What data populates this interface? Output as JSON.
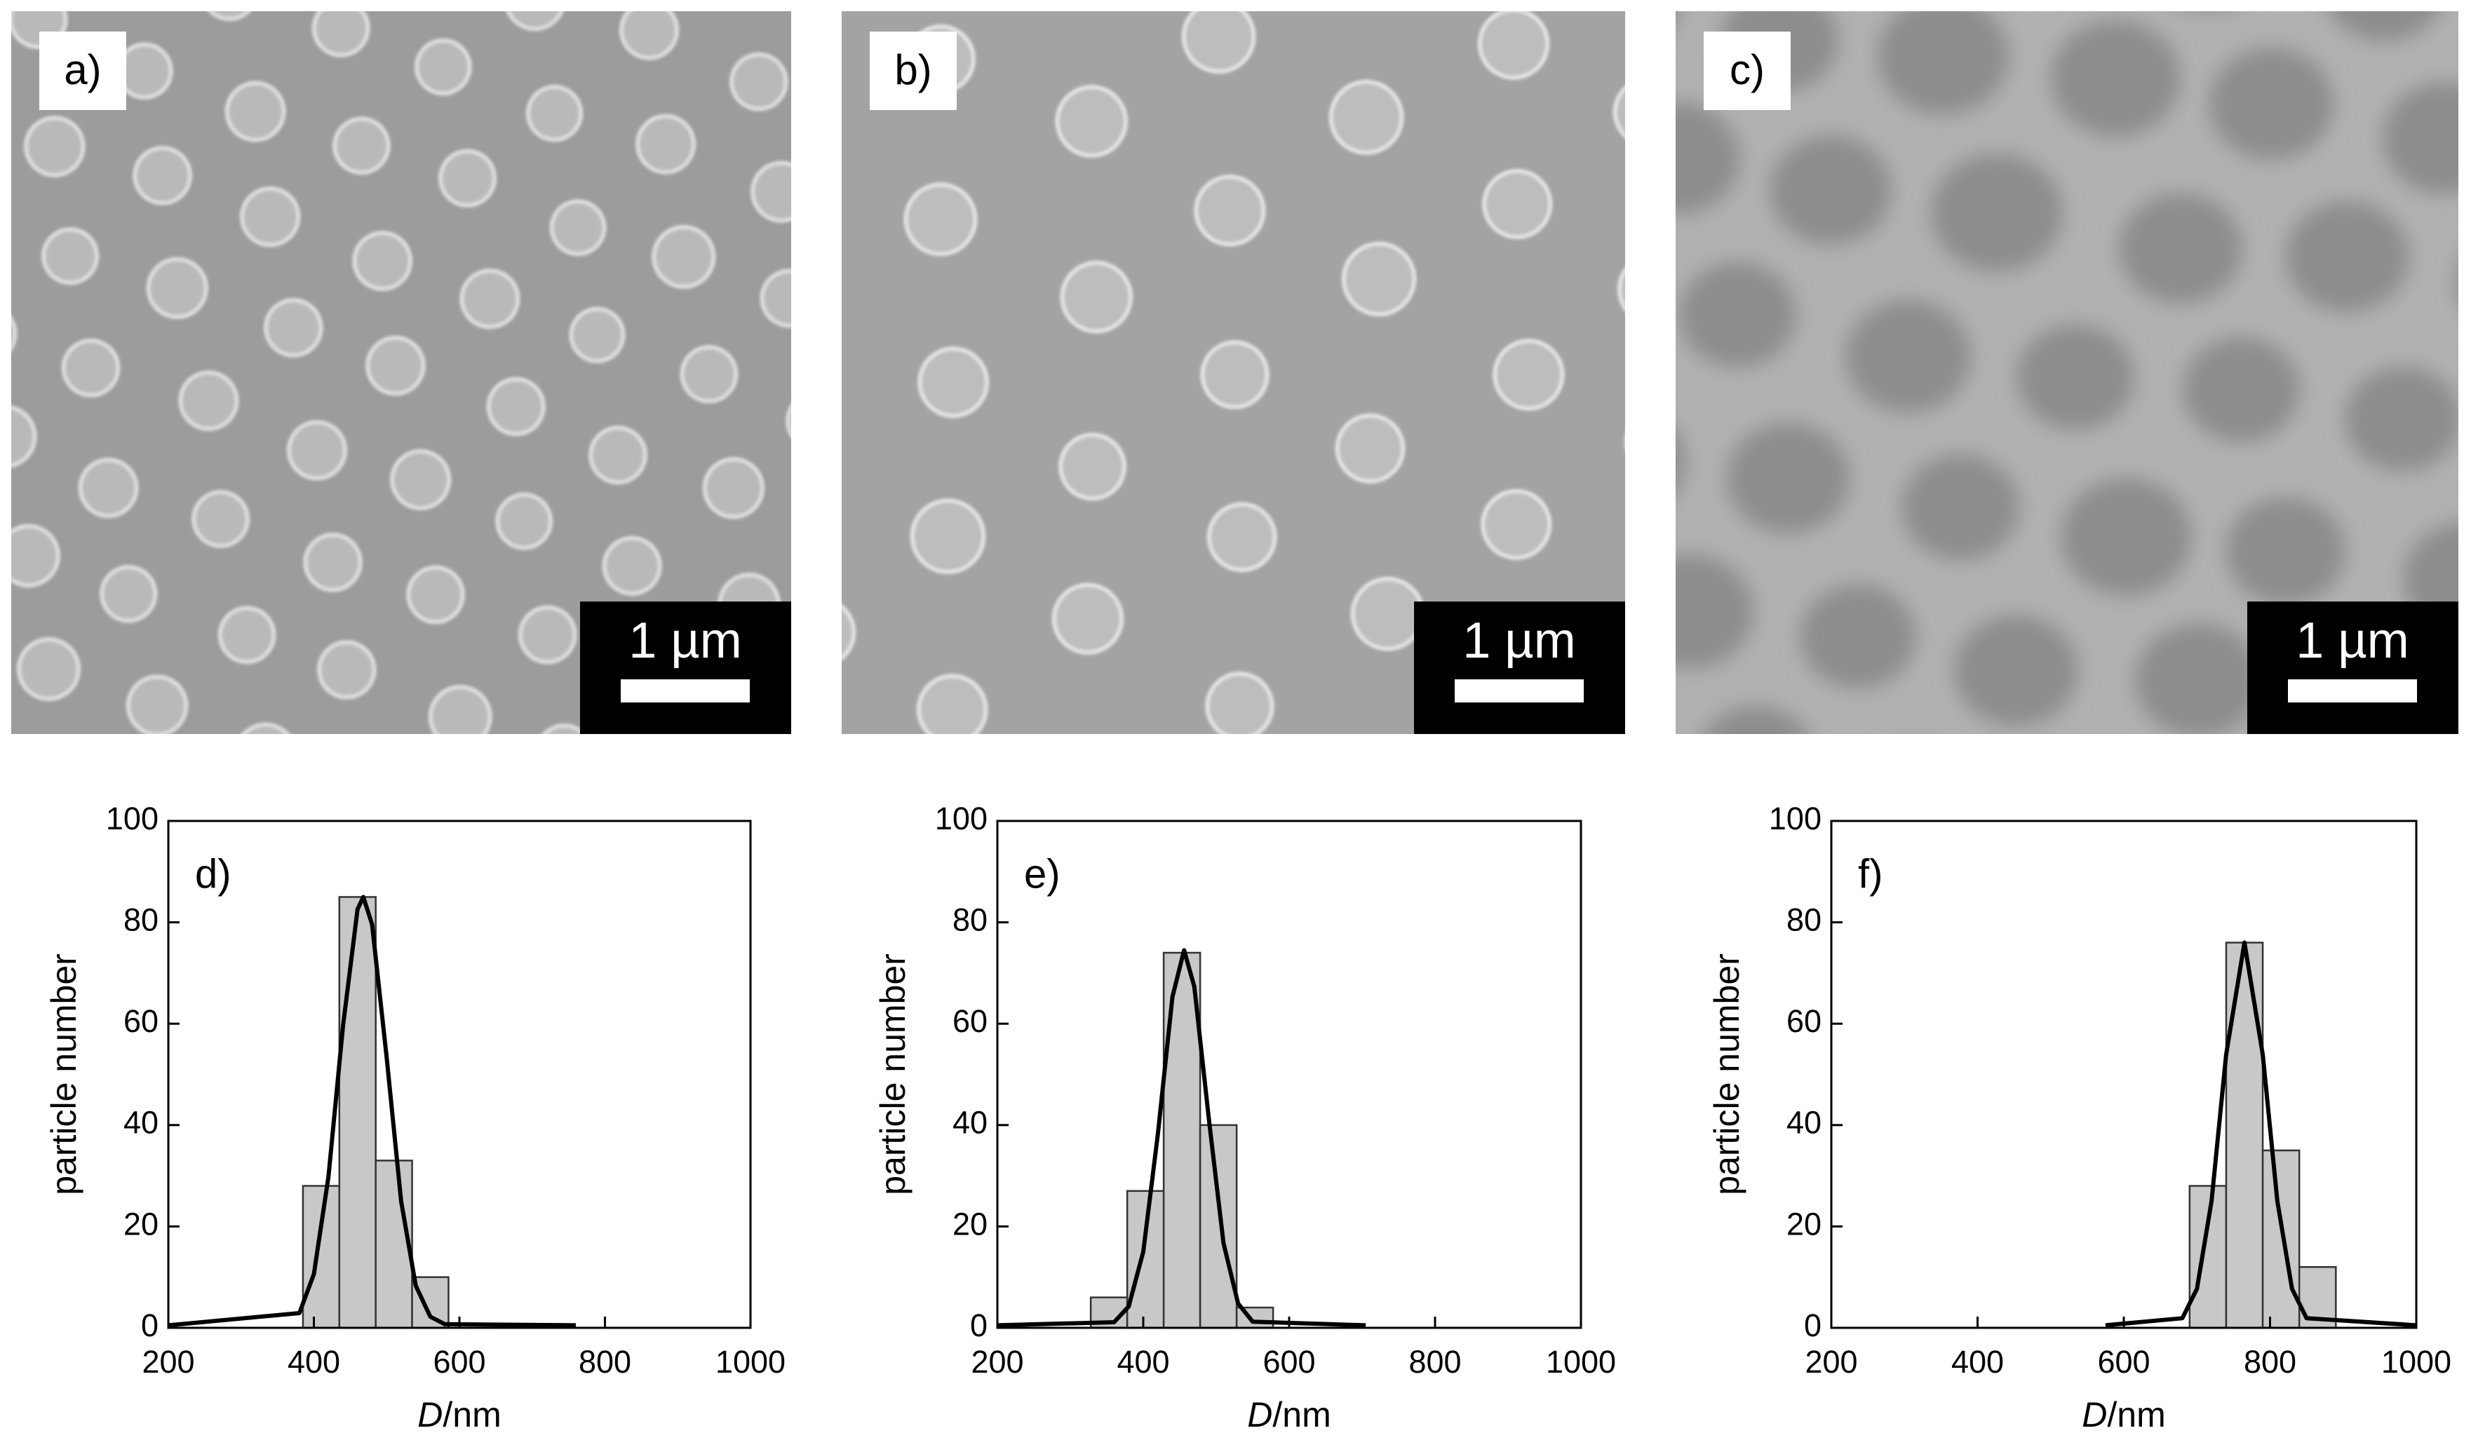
{
  "images": [
    {
      "label": "a)",
      "scale_bar": "1 µm"
    },
    {
      "label": "b)",
      "scale_bar": "1 µm"
    },
    {
      "label": "c)",
      "scale_bar": "1 µm"
    }
  ],
  "chart_data": [
    {
      "type": "histogram",
      "panel_label": "d)",
      "ylabel": "particle number",
      "xlabel_symbol": "D",
      "xlabel_unit": "/nm",
      "bins": [
        385,
        435,
        485,
        535,
        585
      ],
      "values": [
        28,
        85,
        33,
        10
      ],
      "color": "#c8c8c8",
      "fit": {
        "x": [
          200,
          380,
          400,
          420,
          440,
          460,
          468,
          480,
          500,
          520,
          540,
          560,
          580,
          760
        ],
        "values": [
          0.5,
          2.9,
          10.6,
          29.8,
          59.5,
          82.6,
          85,
          79.6,
          53.3,
          24.9,
          8.3,
          2.2,
          0.7,
          0.5
        ]
      },
      "xlim": [
        200,
        1000
      ],
      "xticks": [
        200,
        400,
        600,
        800,
        1000
      ],
      "ylim": [
        0,
        100
      ],
      "yticks": [
        0,
        20,
        40,
        60,
        80,
        100
      ]
    },
    {
      "type": "histogram",
      "panel_label": "e)",
      "ylabel": "particle number",
      "xlabel_symbol": "D",
      "xlabel_unit": "/nm",
      "bins": [
        328,
        378,
        428,
        478,
        528,
        578
      ],
      "values": [
        6,
        27,
        74,
        40,
        4
      ],
      "color": "#c8c8c8",
      "fit": {
        "x": [
          200,
          360,
          380,
          400,
          420,
          440,
          456,
          470,
          490,
          510,
          530,
          550,
          705
        ],
        "values": [
          0.5,
          1.1,
          4.2,
          15.0,
          38.2,
          65.3,
          74.5,
          67.3,
          41.1,
          16.7,
          4.8,
          1.2,
          0.5
        ]
      },
      "xlim": [
        200,
        1000
      ],
      "xticks": [
        200,
        400,
        600,
        800,
        1000
      ],
      "ylim": [
        0,
        100
      ],
      "yticks": [
        0,
        20,
        40,
        60,
        80,
        100
      ]
    },
    {
      "type": "histogram",
      "panel_label": "f)",
      "ylabel": "particle number",
      "xlabel_symbol": "D",
      "xlabel_unit": "/nm",
      "bins": [
        690,
        740,
        790,
        840,
        890
      ],
      "values": [
        28,
        76,
        35,
        12
      ],
      "color": "#c8c8c8",
      "fit": {
        "x": [
          575,
          680,
          700,
          720,
          740,
          765,
          790,
          810,
          830,
          850,
          1000
        ],
        "values": [
          0.5,
          1.9,
          7.7,
          25.0,
          53.9,
          76,
          53.9,
          25.0,
          7.7,
          1.9,
          0.5
        ]
      },
      "xlim": [
        200,
        1000
      ],
      "xticks": [
        200,
        400,
        600,
        800,
        1000
      ],
      "ylim": [
        0,
        100
      ],
      "yticks": [
        0,
        20,
        40,
        60,
        80,
        100
      ]
    }
  ]
}
